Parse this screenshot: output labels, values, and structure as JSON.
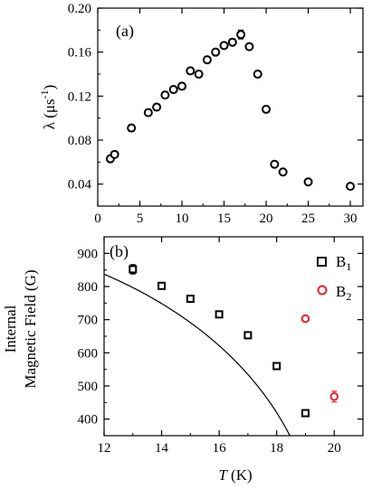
{
  "chart_data": [
    {
      "type": "scatter",
      "panel_label": "(a)",
      "ylabel": "λ (μs⁻¹)",
      "ylabel_main": "λ (μs",
      "ylabel_sup": "-1",
      "ylabel_close": ")",
      "xlabel": "",
      "xlim": [
        0,
        31.5
      ],
      "ylim": [
        0.02,
        0.2
      ],
      "xticks": [
        0,
        5,
        10,
        15,
        20,
        25,
        30
      ],
      "yticks": [
        0.04,
        0.08,
        0.12,
        0.16,
        0.2
      ],
      "ytick_labels": [
        "0.04",
        "0.08",
        "0.12",
        "0.16",
        "0.20"
      ],
      "grid": false,
      "series": [
        {
          "color": "#000000",
          "marker": "circle-open",
          "x": [
            1.5,
            2,
            4,
            6,
            7,
            8,
            9,
            10,
            11,
            12,
            13,
            14,
            15,
            16,
            17,
            18,
            19,
            20,
            21,
            22,
            25,
            30
          ],
          "y": [
            0.063,
            0.067,
            0.091,
            0.105,
            0.11,
            0.121,
            0.126,
            0.129,
            0.143,
            0.14,
            0.153,
            0.16,
            0.166,
            0.169,
            0.176,
            0.165,
            0.14,
            0.108,
            0.058,
            0.051,
            0.042,
            0.038
          ],
          "err": [
            0.003,
            0.003,
            0.003,
            0.003,
            0.003,
            0.003,
            0.003,
            0.003,
            0.003,
            0.003,
            0.003,
            0.003,
            0.003,
            0.003,
            0.004,
            0.003,
            0.003,
            0.002,
            0.002,
            0.002,
            0.002,
            0.002
          ]
        }
      ]
    },
    {
      "type": "scatter",
      "panel_label": "(b)",
      "xlabel_italic": "T",
      "xlabel_rest": " (K)",
      "ylabel_line1": "Internal",
      "ylabel_line2": "Magnetic Field (G)",
      "xlim": [
        12,
        21
      ],
      "ylim": [
        350,
        950
      ],
      "xticks": [
        12,
        14,
        16,
        18,
        20
      ],
      "yticks": [
        400,
        500,
        600,
        700,
        800,
        900
      ],
      "grid": false,
      "legend_position": "top-right",
      "series": [
        {
          "name": "B",
          "name_sub": "1",
          "color": "#000000",
          "marker": "square-open",
          "x": [
            13,
            14,
            15,
            16,
            17,
            18,
            19
          ],
          "y": [
            852,
            802,
            763,
            716,
            653,
            560,
            418
          ],
          "err": [
            14,
            6,
            6,
            6,
            6,
            6,
            6
          ]
        },
        {
          "name": "B",
          "name_sub": "2",
          "color": "#e8232a",
          "marker": "circle-open",
          "x": [
            19,
            20
          ],
          "y": [
            703,
            468
          ],
          "err": [
            5,
            16
          ]
        }
      ],
      "fit_curve": {
        "color": "#000000",
        "B0": 1000,
        "Tc": 19.45,
        "alpha": 2.5,
        "beta": 0.5
      }
    }
  ]
}
